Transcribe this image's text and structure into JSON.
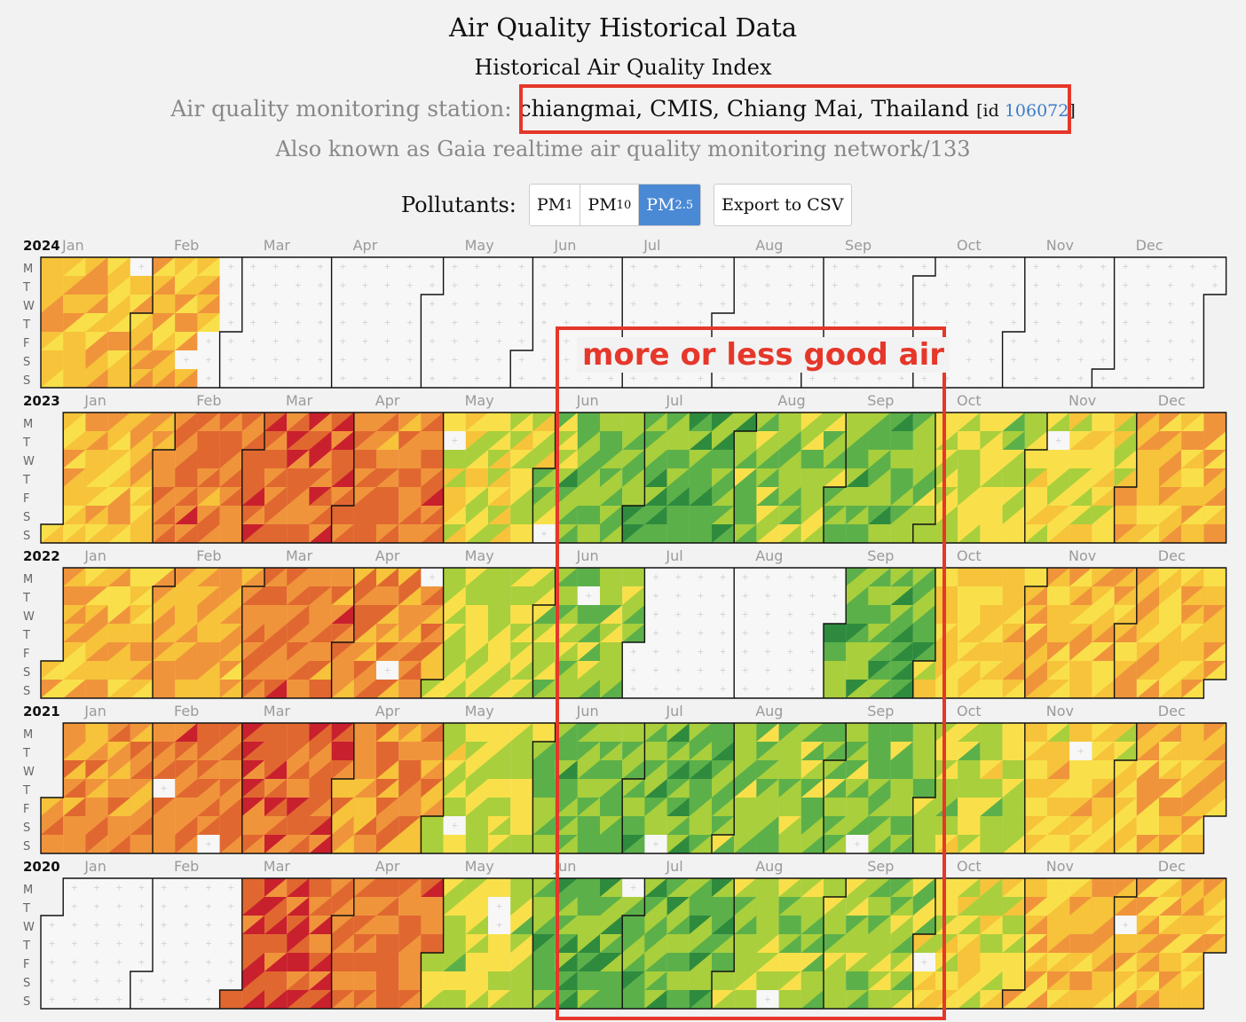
{
  "header": {
    "title": "Air Quality Historical Data",
    "subtitle": "Historical Air Quality Index",
    "station_label": "Air quality monitoring station:",
    "station_name": "chiangmai, CMIS, Chiang Mai, Thailand",
    "id_prefix": "[id",
    "id_value": "106072",
    "id_suffix": "]",
    "aka": "Also known as Gaia realtime air quality monitoring network/133"
  },
  "controls": {
    "pollutants_label": "Pollutants:",
    "buttons": [
      {
        "base": "PM",
        "sub": "1",
        "active": false
      },
      {
        "base": "PM",
        "sub": "10",
        "active": false
      },
      {
        "base": "PM",
        "sub": "2.5",
        "active": true
      }
    ],
    "export_label": "Export to CSV"
  },
  "annotation": {
    "text": "more or less good air",
    "color": "#e5372a"
  },
  "colors": {
    "background": "#f2f2f2",
    "empty_cell": "#f7f7f7",
    "scale": [
      "#2e8b3e",
      "#5cb04a",
      "#a9cf3c",
      "#f9e04a",
      "#f6c33a",
      "#f0943c",
      "#e06830",
      "#c9202e",
      "#5a1ea8",
      "#7a0f1f"
    ]
  },
  "chart_data": {
    "type": "heatmap",
    "months": [
      "Jan",
      "Feb",
      "Mar",
      "Apr",
      "May",
      "Jun",
      "Jul",
      "Aug",
      "Sep",
      "Oct",
      "Nov",
      "Dec"
    ],
    "weekdays": [
      "M",
      "T",
      "W",
      "T",
      "F",
      "S",
      "S"
    ],
    "level_scale": "0 = no data, 1 = good (green) … 7 = very unhealthy (dark red), 8 = hazardous (purple)",
    "years": [
      {
        "year": "2024",
        "monthly_level": [
          5,
          5,
          0,
          0,
          0,
          0,
          0,
          0,
          0,
          0,
          0,
          0
        ],
        "data_through_day": 53
      },
      {
        "year": "2023",
        "monthly_level": [
          5,
          6.5,
          7,
          6.5,
          4,
          2.5,
          2.2,
          2.8,
          2.5,
          3.5,
          4,
          5
        ],
        "data_through_day": 365
      },
      {
        "year": "2022",
        "monthly_level": [
          5,
          5.5,
          6.5,
          6,
          3.5,
          3,
          0,
          0,
          2.3,
          4.5,
          5,
          5
        ],
        "data_through_day": 365
      },
      {
        "year": "2021",
        "monthly_level": [
          6,
          6.5,
          7,
          6,
          3.5,
          2.5,
          2.3,
          2.8,
          2.6,
          3.5,
          4.5,
          5
        ],
        "data_through_day": 365
      },
      {
        "year": "2020",
        "monthly_level": [
          0,
          0,
          7,
          6.5,
          3.5,
          2.3,
          2.3,
          3,
          3,
          4,
          5,
          5
        ],
        "data_through_day": 366
      }
    ]
  }
}
